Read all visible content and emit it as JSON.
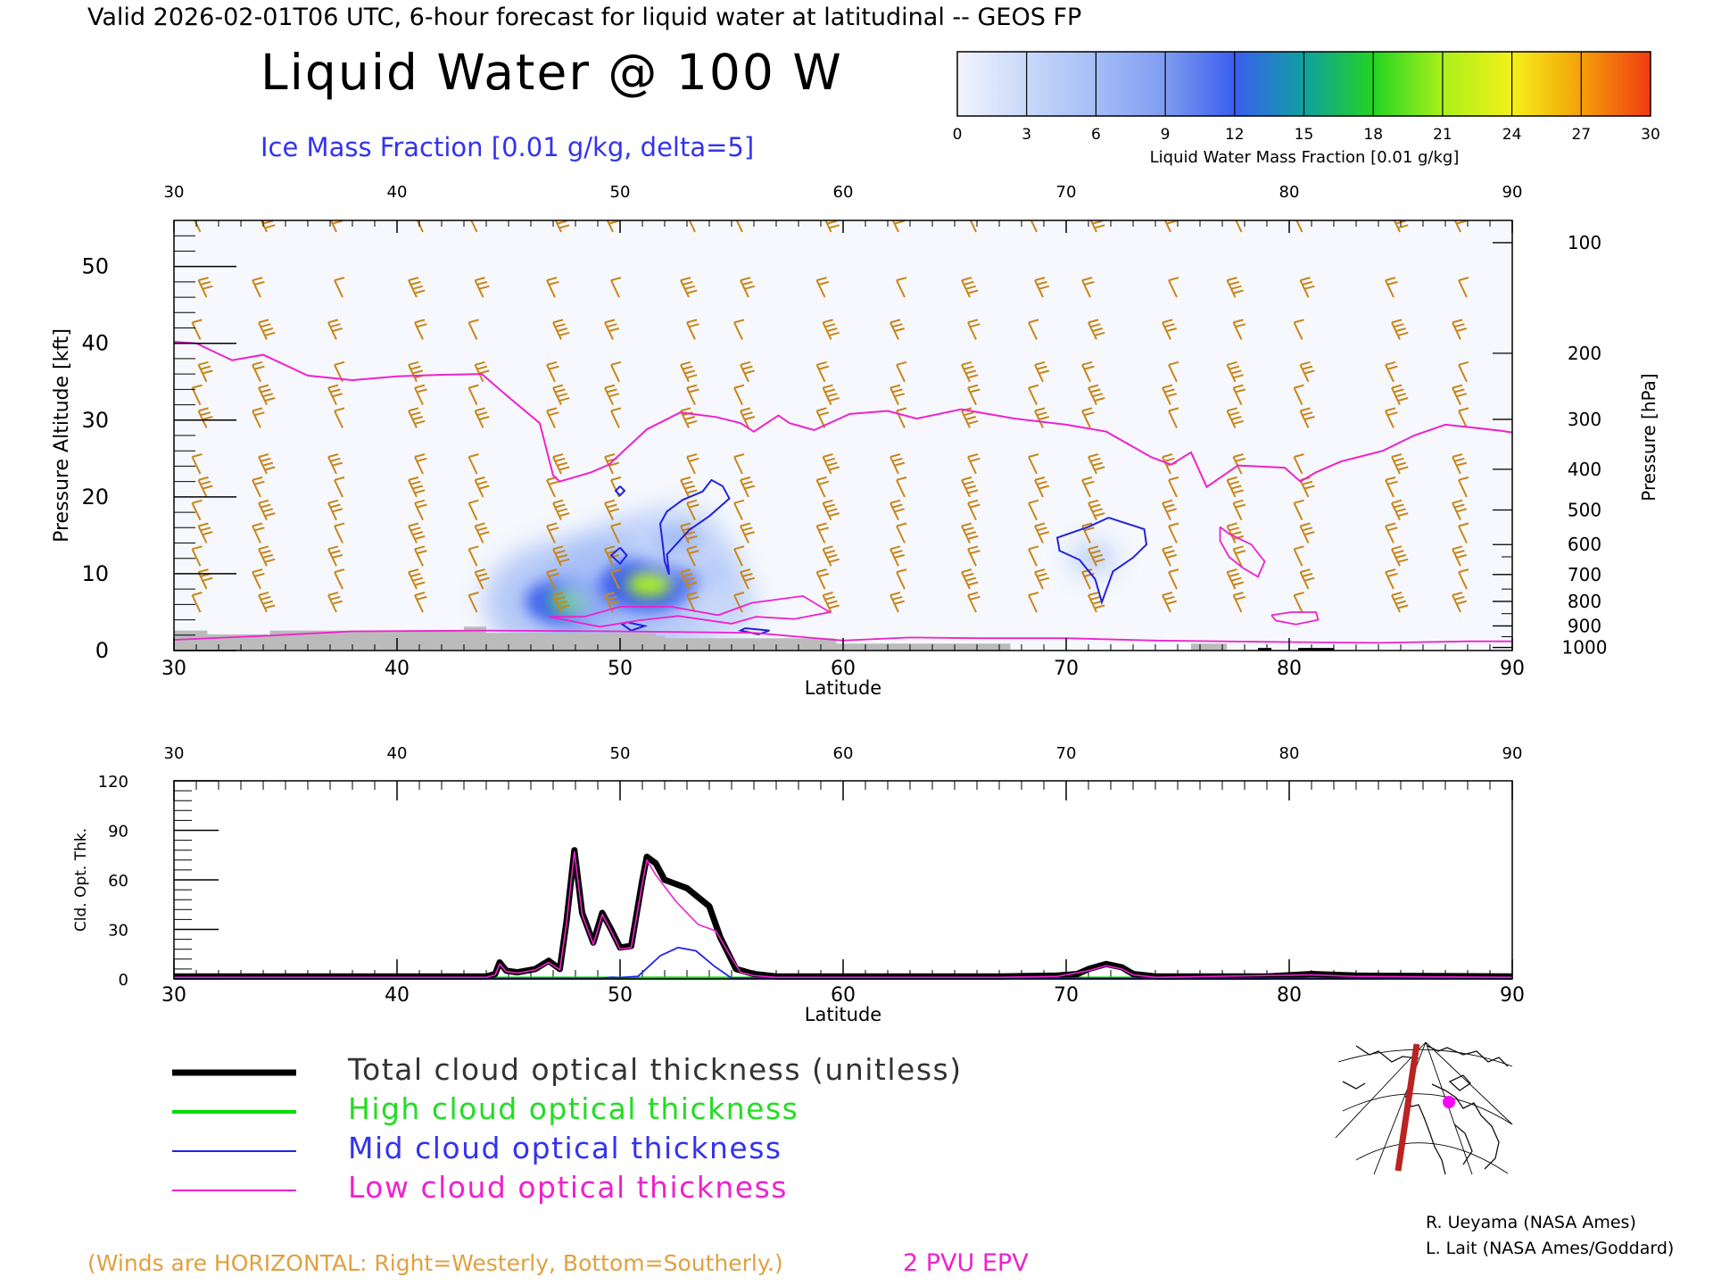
{
  "header": {
    "valid_line": "Valid 2026-02-01T06 UTC, 6-hour forecast for liquid water at latitudinal -- GEOS FP",
    "main_title": "Liquid Water @ 100 W",
    "subtitle": "Ice Mass Fraction [0.01 g/kg, delta=5]"
  },
  "colorbar": {
    "ticks": [
      "0",
      "3",
      "6",
      "9",
      "12",
      "15",
      "18",
      "21",
      "24",
      "27",
      "30"
    ],
    "label": "Liquid Water Mass Fraction [0.01 g/kg]",
    "colors": [
      "#f2f4fc",
      "#c8d8fa",
      "#a4bdf6",
      "#7f9cf0",
      "#3a5ef0",
      "#0fa0a0",
      "#22d422",
      "#aaf01a",
      "#f4f01a",
      "#f4a00a",
      "#f03a10"
    ]
  },
  "chart_data": [
    {
      "type": "heatmap",
      "name": "cross-section",
      "xlabel": "Latitude",
      "ylabel": "Pressure Altitude [kft]",
      "y2label": "Pressure [hPa]",
      "xlim": [
        30,
        90
      ],
      "ylim": [
        0,
        56
      ],
      "x_ticks": [
        "30",
        "40",
        "50",
        "60",
        "70",
        "80",
        "90"
      ],
      "y_ticks": [
        "0",
        "10",
        "20",
        "30",
        "40",
        "50"
      ],
      "pressure_ticks": [
        "100",
        "200",
        "300",
        "400",
        "500",
        "600",
        "700",
        "800",
        "900",
        "1000"
      ],
      "pressure_tick_kft": [
        53.1,
        38.7,
        30.1,
        23.6,
        18.3,
        13.8,
        9.9,
        6.4,
        3.2,
        0.4
      ],
      "grid": false,
      "liquid_water_blobs": [
        {
          "lat": 47.8,
          "kft": 6.4,
          "value": 18
        },
        {
          "lat": 51.3,
          "kft": 8.6,
          "value": 20
        },
        {
          "lat": 52.6,
          "kft": 14.5,
          "value": 8
        },
        {
          "lat": 54.6,
          "kft": 5.5,
          "value": 6
        },
        {
          "lat": 71.2,
          "kft": 12.0,
          "value": 3
        }
      ],
      "ice_contours": [
        [
          [
            52.2,
            9.9
          ],
          [
            52.1,
            12.5
          ],
          [
            53.1,
            15.7
          ],
          [
            54.0,
            17.5
          ],
          [
            54.9,
            19.8
          ],
          [
            54.6,
            21.4
          ],
          [
            54.1,
            22.2
          ],
          [
            53.7,
            20.7
          ],
          [
            52.8,
            19.6
          ],
          [
            52.1,
            18.1
          ],
          [
            51.8,
            16.5
          ],
          [
            51.9,
            14.2
          ],
          [
            52.0,
            11.6
          ],
          [
            52.2,
            9.9
          ]
        ],
        [
          [
            71.9,
            17.3
          ],
          [
            73.5,
            15.8
          ],
          [
            73.6,
            13.8
          ],
          [
            73.0,
            12.1
          ],
          [
            72.1,
            10.3
          ],
          [
            71.6,
            6.3
          ],
          [
            71.3,
            9.3
          ],
          [
            70.6,
            11.8
          ],
          [
            69.7,
            13.0
          ],
          [
            69.6,
            14.7
          ],
          [
            71.0,
            16.1
          ],
          [
            71.9,
            17.3
          ]
        ],
        [
          [
            50.0,
            13.4
          ],
          [
            50.3,
            12.4
          ],
          [
            50.0,
            11.3
          ],
          [
            49.6,
            12.4
          ],
          [
            50.0,
            13.4
          ]
        ],
        [
          [
            50.0,
            21.4
          ],
          [
            50.2,
            20.8
          ],
          [
            50.0,
            20.2
          ],
          [
            49.8,
            20.8
          ],
          [
            50.0,
            21.4
          ]
        ],
        [
          [
            50.3,
            3.7
          ],
          [
            51.1,
            3.2
          ],
          [
            50.5,
            2.6
          ],
          [
            50.1,
            3.4
          ],
          [
            50.3,
            3.7
          ]
        ],
        [
          [
            55.6,
            2.9
          ],
          [
            56.7,
            2.6
          ],
          [
            56.2,
            2.1
          ],
          [
            55.4,
            2.6
          ],
          [
            55.6,
            2.9
          ]
        ]
      ],
      "epv_2pvu": [
        [
          30.0,
          40.2
        ],
        [
          31.0,
          40.0
        ],
        [
          32.6,
          37.8
        ],
        [
          34.0,
          38.5
        ],
        [
          36.0,
          35.8
        ],
        [
          38.0,
          35.2
        ],
        [
          40.0,
          35.7
        ],
        [
          42.0,
          35.9
        ],
        [
          43.8,
          36.0
        ],
        [
          45.0,
          33.0
        ],
        [
          46.4,
          29.6
        ],
        [
          47.0,
          22.8
        ],
        [
          47.3,
          22.0
        ],
        [
          48.7,
          23.2
        ],
        [
          49.5,
          24.2
        ],
        [
          51.2,
          28.8
        ],
        [
          52.7,
          31.0
        ],
        [
          54.3,
          30.4
        ],
        [
          55.4,
          29.6
        ],
        [
          56.0,
          28.5
        ],
        [
          57.1,
          30.6
        ],
        [
          57.6,
          29.6
        ],
        [
          58.7,
          28.7
        ],
        [
          60.3,
          30.8
        ],
        [
          62.0,
          31.2
        ],
        [
          63.3,
          30.2
        ],
        [
          65.3,
          31.4
        ],
        [
          67.7,
          30.2
        ],
        [
          70.0,
          29.4
        ],
        [
          71.8,
          28.5
        ],
        [
          73.8,
          25.2
        ],
        [
          74.7,
          24.2
        ],
        [
          75.6,
          25.8
        ],
        [
          76.3,
          21.3
        ],
        [
          77.7,
          24.1
        ],
        [
          79.8,
          23.8
        ],
        [
          80.5,
          22.0
        ],
        [
          81.2,
          23.2
        ],
        [
          82.3,
          24.6
        ],
        [
          84.2,
          26.0
        ],
        [
          85.6,
          28.0
        ],
        [
          87.0,
          29.4
        ],
        [
          88.0,
          29.1
        ],
        [
          89.5,
          28.6
        ],
        [
          90.0,
          28.4
        ]
      ],
      "epv_loops": [
        [
          [
            76.9,
            16.1
          ],
          [
            77.3,
            15.2
          ],
          [
            78.3,
            13.8
          ],
          [
            78.9,
            11.6
          ],
          [
            78.6,
            9.6
          ],
          [
            77.9,
            10.8
          ],
          [
            77.3,
            12.2
          ],
          [
            76.9,
            14.3
          ],
          [
            76.9,
            16.1
          ]
        ],
        [
          [
            79.2,
            4.6
          ],
          [
            80.1,
            5.0
          ],
          [
            81.2,
            5.0
          ],
          [
            81.3,
            4.0
          ],
          [
            80.3,
            3.4
          ],
          [
            79.4,
            3.9
          ],
          [
            79.2,
            4.6
          ]
        ],
        [
          [
            46.8,
            4.4
          ],
          [
            48.4,
            4.4
          ],
          [
            50.0,
            5.7
          ],
          [
            52.3,
            5.7
          ],
          [
            54.4,
            4.6
          ],
          [
            55.9,
            6.2
          ],
          [
            58.2,
            7.1
          ],
          [
            59.4,
            5.0
          ],
          [
            57.8,
            4.1
          ],
          [
            56.1,
            4.4
          ],
          [
            55.0,
            3.5
          ],
          [
            52.6,
            4.5
          ],
          [
            50.8,
            3.9
          ],
          [
            49.1,
            3.1
          ],
          [
            46.8,
            4.4
          ]
        ]
      ],
      "epv_lower": [
        [
          30.0,
          1.4
        ],
        [
          34.0,
          1.9
        ],
        [
          38.0,
          2.5
        ],
        [
          44.0,
          2.6
        ],
        [
          50.0,
          2.5
        ],
        [
          56.0,
          2.3
        ],
        [
          60.0,
          1.3
        ],
        [
          63.0,
          1.7
        ],
        [
          66.0,
          1.6
        ],
        [
          70.0,
          1.6
        ],
        [
          74.0,
          1.3
        ],
        [
          80.0,
          1.1
        ],
        [
          84.0,
          1.0
        ],
        [
          88.0,
          1.2
        ],
        [
          90.0,
          1.2
        ]
      ],
      "terrain": [
        [
          30.0,
          2.6
        ],
        [
          31.5,
          2.1
        ],
        [
          34.2,
          2.0
        ],
        [
          34.3,
          2.6
        ],
        [
          40.0,
          2.6
        ],
        [
          43.0,
          3.1
        ],
        [
          44.0,
          2.3
        ],
        [
          49.0,
          2.3
        ],
        [
          51.6,
          1.9
        ],
        [
          52.0,
          1.6
        ],
        [
          59.6,
          1.5
        ],
        [
          59.7,
          0.9
        ],
        [
          67.4,
          0.9
        ],
        [
          67.5,
          0.0
        ],
        [
          75.5,
          0.0
        ],
        [
          75.6,
          0.9
        ],
        [
          77.1,
          0.9
        ],
        [
          77.2,
          0.0
        ],
        [
          90.0,
          0.0
        ]
      ],
      "wind_barbs": {
        "columns_lat": [
          31.3,
          34.0,
          37.4,
          41.0,
          43.7,
          47.2,
          49.8,
          53.2,
          55.6,
          59.3,
          62.6,
          65.8,
          68.8,
          71.2,
          74.8,
          77.7,
          80.7,
          84.8,
          87.8
        ],
        "levels_kft": [
          54.5,
          46.0,
          40.5,
          35.0,
          32.0,
          29.0,
          23.0,
          20.0,
          17.0,
          14.0,
          11.0,
          8.0,
          5.0
        ],
        "direction": "west-northwesterly"
      }
    },
    {
      "type": "line",
      "name": "cloud-optical-thickness",
      "xlabel": "Latitude",
      "ylabel": "Cld. Opt. Thk.",
      "xlim": [
        30,
        90
      ],
      "ylim": [
        0,
        120
      ],
      "x_ticks": [
        "30",
        "40",
        "50",
        "60",
        "70",
        "80",
        "90"
      ],
      "y_ticks": [
        "0",
        "30",
        "60",
        "90",
        "120"
      ],
      "series": [
        {
          "name": "Total cloud optical thickness (unitless)",
          "color": "#000000",
          "points": [
            [
              30,
              1.5
            ],
            [
              44,
              1.5
            ],
            [
              44.4,
              3
            ],
            [
              44.6,
              10
            ],
            [
              44.9,
              5
            ],
            [
              45.4,
              4
            ],
            [
              46.2,
              6
            ],
            [
              46.8,
              11
            ],
            [
              47.3,
              6
            ],
            [
              47.6,
              35
            ],
            [
              47.95,
              78
            ],
            [
              48.3,
              40
            ],
            [
              48.8,
              22
            ],
            [
              49.2,
              40
            ],
            [
              49.6,
              30
            ],
            [
              50,
              19
            ],
            [
              50.5,
              20
            ],
            [
              51,
              60
            ],
            [
              51.2,
              74
            ],
            [
              51.6,
              70
            ],
            [
              52,
              60
            ],
            [
              53,
              55
            ],
            [
              54,
              44
            ],
            [
              54.5,
              25
            ],
            [
              55.2,
              6
            ],
            [
              56,
              3
            ],
            [
              57,
              1.5
            ],
            [
              60,
              1.5
            ],
            [
              67,
              1.5
            ],
            [
              69.6,
              2
            ],
            [
              70.5,
              3
            ],
            [
              71,
              6
            ],
            [
              71.8,
              9
            ],
            [
              72.5,
              7
            ],
            [
              73,
              3
            ],
            [
              74,
              1.5
            ],
            [
              79,
              1.5
            ],
            [
              81,
              3
            ],
            [
              83,
              2
            ],
            [
              90,
              1.5
            ]
          ]
        },
        {
          "name": "High cloud optical thickness",
          "color": "#00dd00",
          "points": [
            [
              30,
              0.5
            ],
            [
              90,
              0.5
            ]
          ]
        },
        {
          "name": "Mid cloud optical thickness",
          "color": "#2222ee",
          "points": [
            [
              30,
              0.3
            ],
            [
              49.2,
              0.3
            ],
            [
              49.6,
              1
            ],
            [
              50,
              0.8
            ],
            [
              50.8,
              1.5
            ],
            [
              51.8,
              14
            ],
            [
              52.6,
              19
            ],
            [
              53.4,
              17
            ],
            [
              54.2,
              8
            ],
            [
              55,
              0.5
            ],
            [
              90,
              0.3
            ]
          ]
        },
        {
          "name": "Low cloud optical thickness",
          "color": "#ee22cc",
          "points": [
            [
              30,
              1
            ],
            [
              44,
              1
            ],
            [
              44.4,
              2.5
            ],
            [
              44.6,
              9
            ],
            [
              44.9,
              4.5
            ],
            [
              45.4,
              3.5
            ],
            [
              46.2,
              5.5
            ],
            [
              46.8,
              10
            ],
            [
              47.3,
              5.5
            ],
            [
              47.6,
              34
            ],
            [
              47.95,
              77
            ],
            [
              48.3,
              39
            ],
            [
              48.8,
              21
            ],
            [
              49.2,
              39
            ],
            [
              49.6,
              29
            ],
            [
              50,
              18
            ],
            [
              50.5,
              19
            ],
            [
              51,
              58
            ],
            [
              51.2,
              72
            ],
            [
              51.6,
              63
            ],
            [
              52.5,
              47
            ],
            [
              53.5,
              33
            ],
            [
              54.3,
              29
            ],
            [
              54.9,
              15
            ],
            [
              55.4,
              4
            ],
            [
              56,
              2
            ],
            [
              57,
              1
            ],
            [
              67,
              1
            ],
            [
              69.6,
              1.5
            ],
            [
              71,
              5
            ],
            [
              71.8,
              8
            ],
            [
              72.5,
              6
            ],
            [
              73,
              2.5
            ],
            [
              74,
              1
            ],
            [
              81,
              2.5
            ],
            [
              83,
              1.5
            ],
            [
              90,
              1
            ]
          ]
        }
      ]
    }
  ],
  "legend": [
    {
      "label": "Total cloud optical thickness (unitless)",
      "color": "#000000",
      "text_color": "#333333"
    },
    {
      "label": "High cloud optical thickness",
      "color": "#00dd00",
      "text_color": "#22dd22"
    },
    {
      "label": "Mid cloud optical thickness",
      "color": "#2222ee",
      "text_color": "#3333ee"
    },
    {
      "label": "Low cloud optical thickness",
      "color": "#ee22cc",
      "text_color": "#ee22cc"
    }
  ],
  "footer": {
    "winds_note": "(Winds are HORIZONTAL: Right=Westerly, Bottom=Southerly.)",
    "epv_label": "2 PVU EPV",
    "credit_1": "R. Ueyama (NASA Ames)",
    "credit_2": "L. Lait (NASA Ames/Goddard)"
  },
  "colors": {
    "wind_barb": "#c8861a",
    "epv": "#ee22cc",
    "ice_contour": "#2222dd",
    "terrain": "#bbbbbb",
    "subtitle": "#3333ee",
    "winds_note": "#e0a040",
    "map_track": "#bb2222",
    "map_marker": "#ff00ff"
  }
}
